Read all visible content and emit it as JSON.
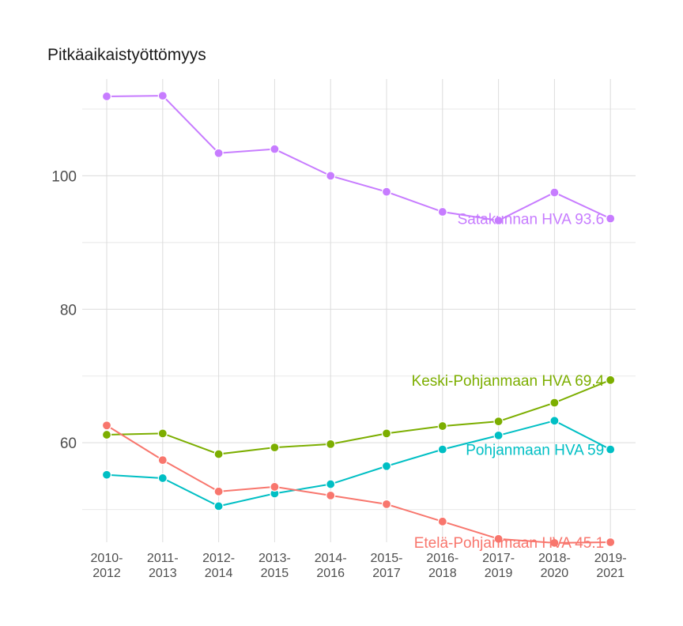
{
  "chart_data": {
    "type": "line",
    "title": "Pitkäaikaistyöttömyys",
    "xlabel": "",
    "ylabel": "",
    "categories": [
      [
        "2010-",
        "2012"
      ],
      [
        "2011-",
        "2013"
      ],
      [
        "2012-",
        "2014"
      ],
      [
        "2013-",
        "2015"
      ],
      [
        "2014-",
        "2016"
      ],
      [
        "2015-",
        "2017"
      ],
      [
        "2016-",
        "2018"
      ],
      [
        "2017-",
        "2019"
      ],
      [
        "2018-",
        "2020"
      ],
      [
        "2019-",
        "2021"
      ]
    ],
    "ylim": [
      45.1,
      114.5
    ],
    "yticks": [
      60,
      80,
      100
    ],
    "series": [
      {
        "name": "Satakunnan HVA",
        "color": "#c77cff",
        "values": [
          111.9,
          112.0,
          103.4,
          104.0,
          100.0,
          97.6,
          94.6,
          93.3,
          97.5,
          93.6
        ],
        "end_label": "Satakunnan HVA 93.6"
      },
      {
        "name": "Keski-Pohjanmaan HVA",
        "color": "#7cae00",
        "values": [
          61.2,
          61.4,
          58.3,
          59.3,
          59.8,
          61.4,
          62.5,
          63.2,
          66.0,
          69.4
        ],
        "end_label": "Keski-Pohjanmaan HVA 69.4"
      },
      {
        "name": "Pohjanmaan HVA",
        "color": "#00bfc4",
        "values": [
          55.2,
          54.7,
          50.5,
          52.4,
          53.8,
          56.5,
          59.0,
          61.1,
          63.3,
          59.0
        ],
        "end_label": "Pohjanmaan HVA 59"
      },
      {
        "name": "Etelä-Pohjanmaan HVA",
        "color": "#f8766d",
        "values": [
          62.6,
          57.4,
          52.7,
          53.4,
          52.1,
          50.8,
          48.2,
          45.6,
          45.0,
          45.1
        ],
        "end_label": "Etelä-Pohjanmaan HVA 45.1"
      }
    ]
  }
}
